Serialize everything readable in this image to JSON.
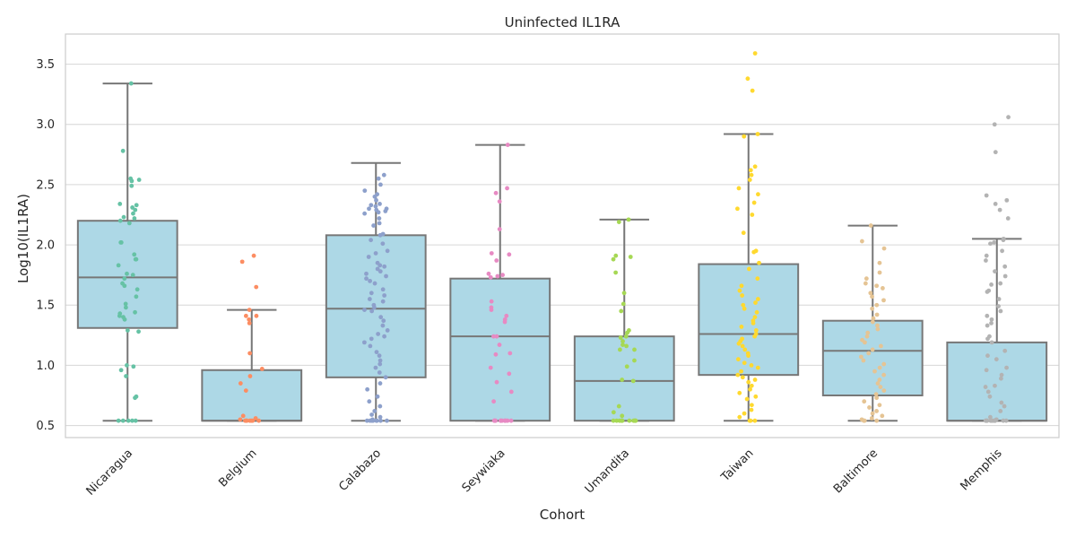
{
  "chart_data": {
    "type": "box",
    "title": "Uninfected IL1RA",
    "xlabel": "Cohort",
    "ylabel": "Log10(IL1RA)",
    "ylim": [
      0.4,
      3.75
    ],
    "yticks": [
      "0.5",
      "1.0",
      "1.5",
      "2.0",
      "2.5",
      "3.0",
      "3.5"
    ],
    "grid": true,
    "box_color": "#add8e6",
    "line_color": "#777777",
    "categories": [
      "Nicaragua",
      "Belgium",
      "Calabazo",
      "Seywiaka",
      "Umandita",
      "Taiwan",
      "Baltimore",
      "Memphis"
    ],
    "boxes": [
      {
        "name": "Nicaragua",
        "whisker_low": 0.54,
        "q1": 1.31,
        "median": 1.73,
        "q3": 2.2,
        "whisker_high": 3.34,
        "point_color": "#66c2a5"
      },
      {
        "name": "Belgium",
        "whisker_low": 0.54,
        "q1": 0.54,
        "median": 0.54,
        "q3": 0.96,
        "whisker_high": 1.46,
        "point_color": "#fc8d62"
      },
      {
        "name": "Calabazo",
        "whisker_low": 0.54,
        "q1": 0.9,
        "median": 1.47,
        "q3": 2.08,
        "whisker_high": 2.68,
        "point_color": "#8da0cb"
      },
      {
        "name": "Seywiaka",
        "whisker_low": 0.54,
        "q1": 0.54,
        "median": 1.24,
        "q3": 1.72,
        "whisker_high": 2.83,
        "point_color": "#e78ac3"
      },
      {
        "name": "Umandita",
        "whisker_low": 0.54,
        "q1": 0.54,
        "median": 0.87,
        "q3": 1.24,
        "whisker_high": 2.21,
        "point_color": "#a6d854"
      },
      {
        "name": "Taiwan",
        "whisker_low": 0.54,
        "q1": 0.92,
        "median": 1.26,
        "q3": 1.84,
        "whisker_high": 2.92,
        "point_color": "#ffd92f"
      },
      {
        "name": "Baltimore",
        "whisker_low": 0.54,
        "q1": 0.75,
        "median": 1.12,
        "q3": 1.37,
        "whisker_high": 2.16,
        "point_color": "#e5c494"
      },
      {
        "name": "Memphis",
        "whisker_low": 0.54,
        "q1": 0.54,
        "median": 0.54,
        "q3": 1.19,
        "whisker_high": 2.05,
        "point_color": "#b3b3b3"
      }
    ],
    "points": [
      [
        3.34,
        2.78,
        2.55,
        2.54,
        2.53,
        2.49,
        2.34,
        2.33,
        2.31,
        2.29,
        2.26,
        2.23,
        2.22,
        2.2,
        2.18,
        2.02,
        2.02,
        1.92,
        1.88,
        1.88,
        1.83,
        1.76,
        1.75,
        1.72,
        1.68,
        1.66,
        1.63,
        1.57,
        1.51,
        1.48,
        1.44,
        1.43,
        1.41,
        1.4,
        1.38,
        1.29,
        1.28,
        1.0,
        0.99,
        0.96,
        0.91,
        0.74,
        0.73,
        0.54,
        0.54,
        0.54,
        0.54,
        0.54
      ],
      [
        1.91,
        1.86,
        1.65,
        1.46,
        1.41,
        1.41,
        1.38,
        1.35,
        1.1,
        0.97,
        0.91,
        0.85,
        0.79,
        0.58,
        0.56,
        0.55,
        0.54,
        0.54,
        0.54,
        0.54,
        0.54,
        0.54,
        0.54
      ],
      [
        2.58,
        2.55,
        2.5,
        2.45,
        2.42,
        2.4,
        2.37,
        2.34,
        2.33,
        2.32,
        2.3,
        2.3,
        2.29,
        2.28,
        2.27,
        2.26,
        2.22,
        2.18,
        2.16,
        2.09,
        2.08,
        2.04,
        2.01,
        1.95,
        1.93,
        1.9,
        1.85,
        1.83,
        1.82,
        1.8,
        1.78,
        1.76,
        1.74,
        1.72,
        1.7,
        1.68,
        1.63,
        1.6,
        1.58,
        1.55,
        1.53,
        1.5,
        1.48,
        1.46,
        1.45,
        1.4,
        1.37,
        1.33,
        1.29,
        1.26,
        1.24,
        1.22,
        1.19,
        1.16,
        1.11,
        1.08,
        1.04,
        1.01,
        0.98,
        0.94,
        0.9,
        0.85,
        0.8,
        0.74,
        0.7,
        0.66,
        0.62,
        0.59,
        0.57,
        0.55,
        0.54,
        0.54,
        0.54,
        0.54,
        0.54,
        0.54,
        0.54,
        0.54
      ],
      [
        2.83,
        2.47,
        2.43,
        2.36,
        2.13,
        1.93,
        1.92,
        1.87,
        1.76,
        1.75,
        1.74,
        1.73,
        1.53,
        1.48,
        1.46,
        1.41,
        1.38,
        1.36,
        1.24,
        1.24,
        1.17,
        1.1,
        1.09,
        0.98,
        0.93,
        0.86,
        0.78,
        0.7,
        0.54,
        0.54,
        0.54,
        0.54,
        0.54,
        0.54,
        0.54,
        0.54,
        0.54,
        0.54,
        0.54,
        0.54
      ],
      [
        2.21,
        2.19,
        1.91,
        1.9,
        1.88,
        1.77,
        1.6,
        1.51,
        1.45,
        1.29,
        1.27,
        1.24,
        1.23,
        1.2,
        1.17,
        1.16,
        1.13,
        1.13,
        1.04,
        0.99,
        0.88,
        0.87,
        0.66,
        0.61,
        0.58,
        0.54,
        0.54,
        0.54,
        0.54,
        0.54,
        0.54,
        0.54,
        0.54,
        0.54,
        0.54,
        0.54,
        0.54
      ],
      [
        3.59,
        3.38,
        3.28,
        2.92,
        2.9,
        2.65,
        2.62,
        2.58,
        2.54,
        2.47,
        2.42,
        2.35,
        2.3,
        2.25,
        2.1,
        1.95,
        1.94,
        1.85,
        1.8,
        1.72,
        1.66,
        1.62,
        1.58,
        1.55,
        1.52,
        1.5,
        1.47,
        1.44,
        1.4,
        1.37,
        1.35,
        1.32,
        1.29,
        1.26,
        1.24,
        1.22,
        1.2,
        1.18,
        1.16,
        1.13,
        1.1,
        1.08,
        1.05,
        1.02,
        1.0,
        0.98,
        0.95,
        0.92,
        0.9,
        0.88,
        0.86,
        0.83,
        0.8,
        0.77,
        0.74,
        0.72,
        0.67,
        0.63,
        0.6,
        0.57,
        0.54,
        0.54,
        0.54
      ],
      [
        2.16,
        2.03,
        1.97,
        1.85,
        1.77,
        1.72,
        1.68,
        1.66,
        1.64,
        1.6,
        1.57,
        1.54,
        1.5,
        1.47,
        1.42,
        1.39,
        1.36,
        1.33,
        1.3,
        1.27,
        1.24,
        1.21,
        1.19,
        1.16,
        1.13,
        1.1,
        1.07,
        1.04,
        1.01,
        0.98,
        0.95,
        0.92,
        0.88,
        0.85,
        0.82,
        0.79,
        0.76,
        0.73,
        0.7,
        0.67,
        0.65,
        0.62,
        0.6,
        0.58,
        0.56,
        0.55,
        0.54,
        0.54,
        0.54
      ],
      [
        3.06,
        3.0,
        2.77,
        2.41,
        2.37,
        2.34,
        2.29,
        2.22,
        2.05,
        2.04,
        2.02,
        2.01,
        1.95,
        1.91,
        1.87,
        1.82,
        1.78,
        1.74,
        1.68,
        1.67,
        1.62,
        1.61,
        1.55,
        1.49,
        1.45,
        1.41,
        1.38,
        1.35,
        1.33,
        1.24,
        1.22,
        1.19,
        1.12,
        1.08,
        1.05,
        0.98,
        0.96,
        0.92,
        0.89,
        0.83,
        0.82,
        0.78,
        0.74,
        0.69,
        0.66,
        0.62,
        0.57,
        0.55,
        0.54,
        0.54,
        0.54,
        0.54,
        0.54,
        0.54,
        0.54,
        0.54,
        0.54,
        0.54,
        0.54,
        0.54
      ]
    ]
  }
}
